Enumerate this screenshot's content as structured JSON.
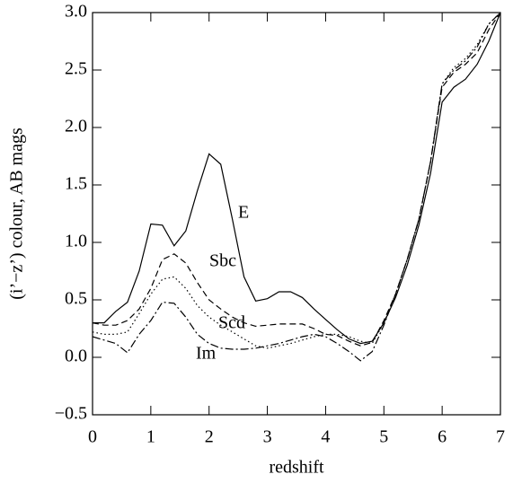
{
  "chart_data": {
    "type": "line",
    "xlabel": "redshift",
    "ylabel": "(i’−z’) colour, AB mags",
    "x": [
      0,
      0.2,
      0.4,
      0.6,
      0.8,
      1.0,
      1.2,
      1.4,
      1.6,
      1.8,
      2.0,
      2.2,
      2.4,
      2.6,
      2.8,
      3.0,
      3.2,
      3.4,
      3.6,
      3.8,
      4.0,
      4.2,
      4.4,
      4.6,
      4.8,
      5.0,
      5.2,
      5.4,
      5.6,
      5.8,
      6.0,
      6.2,
      6.4,
      6.6,
      6.8,
      7.0
    ],
    "series": [
      {
        "name": "E",
        "color": "#000000",
        "linestyle": "solid",
        "values": [
          0.3,
          0.3,
          0.4,
          0.48,
          0.75,
          1.16,
          1.15,
          0.97,
          1.1,
          1.45,
          1.77,
          1.68,
          1.2,
          0.7,
          0.49,
          0.51,
          0.57,
          0.57,
          0.52,
          0.42,
          0.33,
          0.24,
          0.16,
          0.12,
          0.14,
          0.3,
          0.52,
          0.8,
          1.15,
          1.6,
          2.22,
          2.35,
          2.42,
          2.55,
          2.75,
          3.0
        ]
      },
      {
        "name": "Sbc",
        "color": "#000000",
        "linestyle": "dashed",
        "values": [
          0.3,
          0.28,
          0.28,
          0.32,
          0.42,
          0.6,
          0.85,
          0.9,
          0.82,
          0.65,
          0.5,
          0.42,
          0.35,
          0.3,
          0.27,
          0.28,
          0.29,
          0.29,
          0.29,
          0.25,
          0.2,
          0.19,
          0.14,
          0.1,
          0.13,
          0.32,
          0.55,
          0.85,
          1.2,
          1.7,
          2.35,
          2.48,
          2.55,
          2.65,
          2.85,
          3.0
        ]
      },
      {
        "name": "Scd",
        "color": "#000000",
        "linestyle": "dotted",
        "values": [
          0.22,
          0.2,
          0.2,
          0.22,
          0.38,
          0.55,
          0.68,
          0.7,
          0.6,
          0.45,
          0.35,
          0.28,
          0.22,
          0.16,
          0.1,
          0.08,
          0.1,
          0.12,
          0.15,
          0.18,
          0.2,
          0.2,
          0.18,
          0.14,
          0.12,
          0.3,
          0.55,
          0.85,
          1.2,
          1.7,
          2.38,
          2.52,
          2.6,
          2.72,
          2.9,
          3.0
        ]
      },
      {
        "name": "Im",
        "color": "#000000",
        "linestyle": "dashdot",
        "values": [
          0.18,
          0.15,
          0.12,
          0.04,
          0.2,
          0.32,
          0.48,
          0.47,
          0.35,
          0.2,
          0.12,
          0.08,
          0.07,
          0.07,
          0.08,
          0.1,
          0.12,
          0.15,
          0.18,
          0.2,
          0.18,
          0.12,
          0.05,
          -0.03,
          0.05,
          0.28,
          0.55,
          0.85,
          1.2,
          1.7,
          2.38,
          2.5,
          2.58,
          2.7,
          2.9,
          3.0
        ]
      }
    ],
    "xlim": [
      0,
      7
    ],
    "xticks": [
      0,
      1,
      2,
      3,
      4,
      5,
      6,
      7
    ],
    "ylim": [
      -0.5,
      3.0
    ],
    "yticks": [
      {
        "value": -0.5,
        "label": "−0.5"
      },
      {
        "value": 0,
        "label": "0.0"
      },
      0.5,
      {
        "value": 1,
        "label": "1.0"
      },
      1.5,
      {
        "value": 2,
        "label": "2.0"
      },
      2.5,
      {
        "value": 3,
        "label": "3.0"
      }
    ]
  }
}
